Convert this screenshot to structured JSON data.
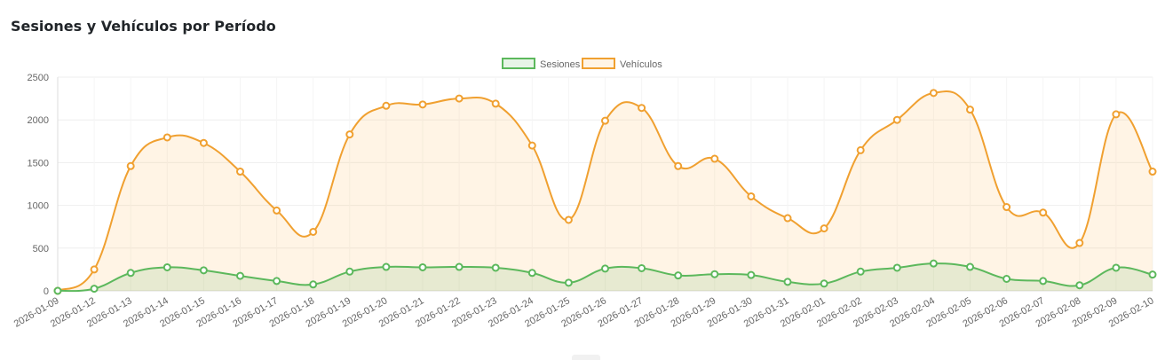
{
  "card": {
    "title": "Sesiones y Vehículos por Período"
  },
  "chart_data": {
    "type": "line",
    "x": [
      "2026-01-09",
      "2026-01-12",
      "2026-01-13",
      "2026-01-14",
      "2026-01-15",
      "2026-01-16",
      "2026-01-17",
      "2026-01-18",
      "2026-01-19",
      "2026-01-20",
      "2026-01-21",
      "2026-01-22",
      "2026-01-23",
      "2026-01-24",
      "2026-01-25",
      "2026-01-26",
      "2026-01-27",
      "2026-01-28",
      "2026-01-29",
      "2026-01-30",
      "2026-01-31",
      "2026-02-01",
      "2026-02-02",
      "2026-02-03",
      "2026-02-04",
      "2026-02-05",
      "2026-02-06",
      "2026-02-07",
      "2026-02-08",
      "2026-02-09",
      "2026-02-10"
    ],
    "series": [
      {
        "name": "Sesiones",
        "color": "#5cb85c",
        "fill": "rgba(92,184,92,0.15)",
        "values": [
          0,
          25,
          210,
          275,
          240,
          175,
          115,
          75,
          225,
          280,
          275,
          280,
          270,
          210,
          95,
          260,
          265,
          180,
          195,
          185,
          105,
          85,
          225,
          270,
          320,
          280,
          140,
          115,
          65,
          270,
          190
        ]
      },
      {
        "name": "Vehículos",
        "color": "#f0a030",
        "fill": "rgba(253,193,110,0.18)",
        "values": [
          0,
          250,
          1460,
          1795,
          1730,
          1395,
          940,
          690,
          1830,
          2165,
          2180,
          2250,
          2190,
          1700,
          830,
          1990,
          2140,
          1460,
          1545,
          1105,
          850,
          730,
          1645,
          2000,
          2315,
          2120,
          980,
          915,
          560,
          2065,
          1395
        ]
      }
    ],
    "y_ticks": [
      0,
      500,
      1000,
      1500,
      2000,
      2500
    ],
    "ylim": [
      0,
      2500
    ],
    "grid": true,
    "legend_position": "top-center",
    "xlabel": "",
    "ylabel": ""
  }
}
